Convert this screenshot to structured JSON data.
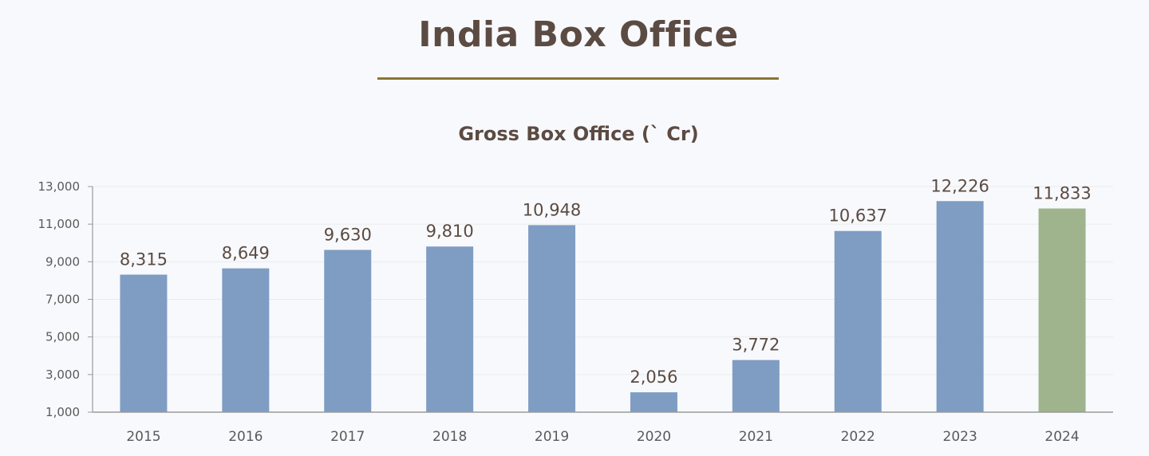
{
  "page": {
    "title": "India Box Office"
  },
  "colors": {
    "background": "#f8f9fd",
    "title_text": "#5b4b42",
    "title_rule": "#8a7536",
    "bar_default": "#7f9dc3",
    "bar_highlight": "#9fb48d",
    "axis": "#9a9a9a",
    "grid": "#ebebeb"
  },
  "chart_data": {
    "type": "bar",
    "title": "Gross Box Office (` Cr)",
    "xlabel": "",
    "ylabel": "",
    "categories": [
      "2015",
      "2016",
      "2017",
      "2018",
      "2019",
      "2020",
      "2021",
      "2022",
      "2023",
      "2024"
    ],
    "values": [
      8315,
      8649,
      9630,
      9810,
      10948,
      2056,
      3772,
      10637,
      12226,
      11833
    ],
    "value_labels": [
      "8,315",
      "8,649",
      "9,630",
      "9,810",
      "10,948",
      "2,056",
      "3,772",
      "10,637",
      "12,226",
      "11,833"
    ],
    "highlighted_category": "2024",
    "ylim": [
      1000,
      13000
    ],
    "yticks": [
      1000,
      3000,
      5000,
      7000,
      9000,
      11000,
      13000
    ],
    "ytick_labels": [
      "1,000",
      "3,000",
      "5,000",
      "7,000",
      "9,000",
      "11,000",
      "13,000"
    ],
    "grid": true,
    "legend": "none"
  }
}
